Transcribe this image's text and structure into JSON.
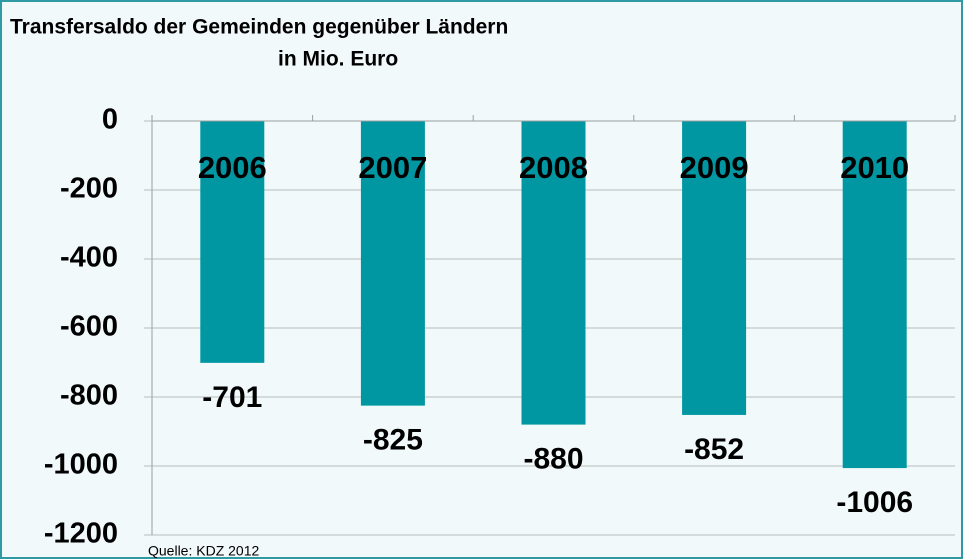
{
  "chart_data": {
    "type": "bar",
    "title": "Transfersaldo der Gemeinden gegenüber Ländern",
    "subtitle": "in Mio. Euro",
    "categories": [
      "2006",
      "2007",
      "2008",
      "2009",
      "2010"
    ],
    "values": [
      -701,
      -825,
      -880,
      -852,
      -1006
    ],
    "color": "#0097a2",
    "ylim": [
      -1200,
      0
    ],
    "yticks": [
      0,
      -200,
      -400,
      -600,
      -800,
      -1000,
      -1200
    ],
    "grid": true,
    "source": "Quelle: KDZ 2012"
  }
}
